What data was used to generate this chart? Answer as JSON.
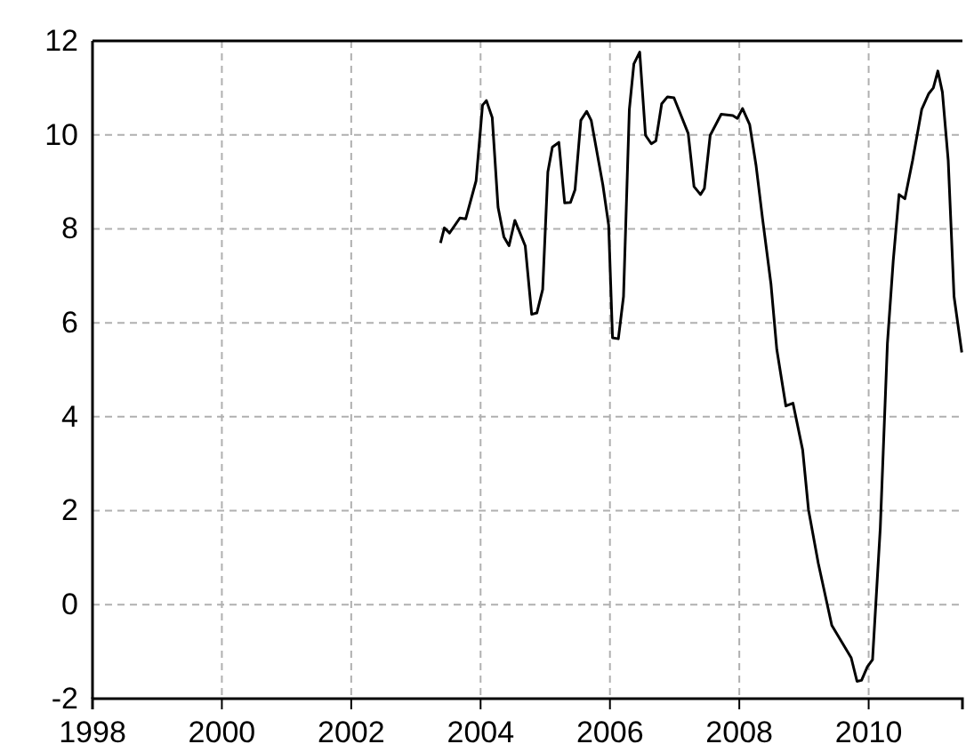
{
  "chart_data": {
    "type": "line",
    "xlim": [
      1998,
      2011.45
    ],
    "ylim": [
      -2,
      12
    ],
    "xticks": [
      1998,
      2000,
      2002,
      2004,
      2006,
      2008,
      2010
    ],
    "yticks": [
      -2,
      0,
      2,
      4,
      6,
      8,
      10,
      12
    ],
    "grid": true,
    "line_style": "solid",
    "marker": "none",
    "series": [
      {
        "color": "#000000",
        "x": [
          2003.38,
          2003.44,
          2003.52,
          2003.68,
          2003.77,
          2003.93,
          2004.03,
          2004.09,
          2004.18,
          2004.27,
          2004.36,
          2004.44,
          2004.53,
          2004.69,
          2004.79,
          2004.87,
          2004.96,
          2005.04,
          2005.11,
          2005.21,
          2005.3,
          2005.39,
          2005.46,
          2005.55,
          2005.64,
          2005.71,
          2005.89,
          2005.98,
          2006.04,
          2006.13,
          2006.21,
          2006.3,
          2006.37,
          2006.46,
          2006.55,
          2006.64,
          2006.71,
          2006.8,
          2006.89,
          2006.99,
          2007.21,
          2007.3,
          2007.4,
          2007.46,
          2007.55,
          2007.72,
          2007.9,
          2007.97,
          2008.05,
          2008.16,
          2008.26,
          2008.36,
          2008.49,
          2008.58,
          2008.72,
          2008.83,
          2008.98,
          2009.07,
          2009.22,
          2009.43,
          2009.73,
          2009.82,
          2009.89,
          2009.98,
          2010.06,
          2010.18,
          2010.29,
          2010.38,
          2010.47,
          2010.56,
          2010.68,
          2010.82,
          2010.93,
          2011.0,
          2011.07,
          2011.14,
          2011.23,
          2011.32,
          2011.44
        ],
        "values": [
          7.7,
          8.02,
          7.91,
          8.23,
          8.21,
          9.02,
          10.63,
          10.73,
          10.37,
          8.46,
          7.83,
          7.64,
          8.18,
          7.64,
          6.18,
          6.21,
          6.71,
          9.21,
          9.74,
          9.84,
          8.55,
          8.56,
          8.83,
          10.31,
          10.5,
          10.31,
          8.94,
          8.08,
          5.68,
          5.66,
          6.56,
          10.54,
          11.51,
          11.76,
          9.99,
          9.81,
          9.87,
          10.66,
          10.81,
          10.79,
          10.03,
          8.9,
          8.73,
          8.86,
          9.99,
          10.44,
          10.41,
          10.35,
          10.56,
          10.22,
          9.34,
          8.21,
          6.82,
          5.43,
          4.23,
          4.29,
          3.29,
          2.02,
          0.89,
          -0.44,
          -1.13,
          -1.63,
          -1.61,
          -1.32,
          -1.17,
          1.64,
          5.56,
          7.32,
          8.73,
          8.64,
          9.46,
          10.54,
          10.88,
          11.0,
          11.36,
          10.91,
          9.46,
          6.56,
          5.37
        ]
      }
    ]
  }
}
